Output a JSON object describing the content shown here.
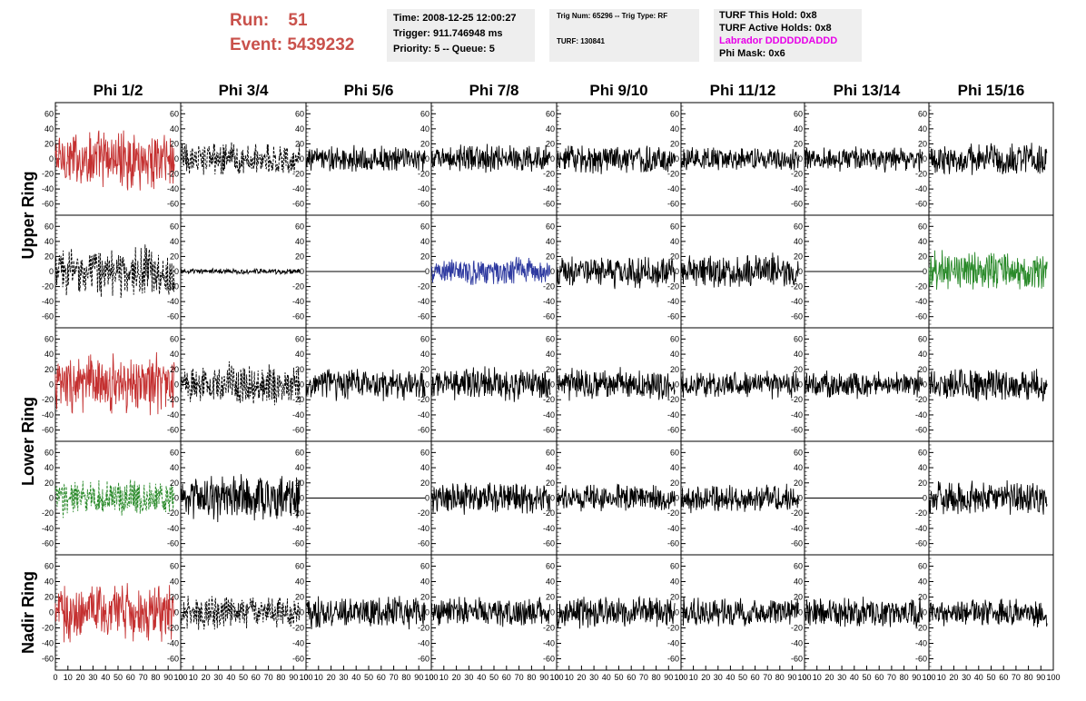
{
  "header": {
    "run_label": "Run:",
    "run_value": "51",
    "event_label": "Event:",
    "event_value": "5439232",
    "time": "Time: 2008-12-25 12:00:27",
    "trigger": "Trigger: 911.746948 ms",
    "priority": "Priority: 5 -- Queue: 5",
    "trig_num": "Trig Num: 65296 -- Trig Type: RF",
    "turf": "TURF: 130841",
    "turf_this_hold": "TURF This Hold: 0x8",
    "turf_active_holds": "TURF Active Holds: 0x8",
    "labrador": "Labrador DDDDDDADDD",
    "phi_mask": "Phi Mask: 0x6"
  },
  "chart_data": {
    "type": "line",
    "columns": [
      "Phi 1/2",
      "Phi 3/4",
      "Phi 5/6",
      "Phi 7/8",
      "Phi 9/10",
      "Phi 11/12",
      "Phi 13/14",
      "Phi 15/16"
    ],
    "ring_labels": [
      "Upper Ring",
      "Lower Ring",
      "Nadir Ring"
    ],
    "y_ticks": [
      -60,
      -40,
      -20,
      0,
      20,
      40,
      60
    ],
    "x_ticks": [
      0,
      10,
      20,
      30,
      40,
      50,
      60,
      70,
      80,
      90,
      100
    ],
    "xlim": [
      0,
      100
    ],
    "ylim": [
      -70,
      70
    ],
    "x_range_waveform": [
      0,
      95
    ],
    "colors": {
      "red": "#c43030",
      "blue": "#2e3aa0",
      "green": "#2a8a2a",
      "black": "#000000"
    },
    "rows": [
      [
        {
          "color": "red",
          "amp": 32,
          "dashed": false
        },
        {
          "color": "black",
          "amp": 18,
          "dashed": true
        },
        {
          "color": "black",
          "amp": 14,
          "dashed": false
        },
        {
          "color": "black",
          "amp": 15,
          "dashed": false
        },
        {
          "color": "black",
          "amp": 16,
          "dashed": false
        },
        {
          "color": "black",
          "amp": 13,
          "dashed": false
        },
        {
          "color": "black",
          "amp": 13,
          "dashed": false
        },
        {
          "color": "black",
          "amp": 17,
          "dashed": false
        }
      ],
      [
        {
          "color": "black",
          "amp": 26,
          "dashed": true
        },
        {
          "color": "black",
          "amp": 3,
          "dashed": false
        },
        {
          "color": "black",
          "amp": 0,
          "dashed": false
        },
        {
          "color": "blue",
          "amp": 16,
          "dashed": false
        },
        {
          "color": "black",
          "amp": 17,
          "dashed": false
        },
        {
          "color": "black",
          "amp": 18,
          "dashed": false
        },
        {
          "color": "black",
          "amp": 0,
          "dashed": false
        },
        {
          "color": "green",
          "amp": 22,
          "dashed": false
        }
      ],
      [
        {
          "color": "red",
          "amp": 32,
          "dashed": false
        },
        {
          "color": "black",
          "amp": 22,
          "dashed": true
        },
        {
          "color": "black",
          "amp": 17,
          "dashed": false
        },
        {
          "color": "black",
          "amp": 18,
          "dashed": false
        },
        {
          "color": "black",
          "amp": 17,
          "dashed": false
        },
        {
          "color": "black",
          "amp": 14,
          "dashed": false
        },
        {
          "color": "black",
          "amp": 14,
          "dashed": false
        },
        {
          "color": "black",
          "amp": 17,
          "dashed": false
        }
      ],
      [
        {
          "color": "green",
          "amp": 20,
          "dashed": true
        },
        {
          "color": "black",
          "amp": 25,
          "dashed": false
        },
        {
          "color": "black",
          "amp": 0,
          "dashed": false
        },
        {
          "color": "black",
          "amp": 17,
          "dashed": false
        },
        {
          "color": "black",
          "amp": 14,
          "dashed": false
        },
        {
          "color": "black",
          "amp": 15,
          "dashed": false
        },
        {
          "color": "black",
          "amp": 0,
          "dashed": false
        },
        {
          "color": "black",
          "amp": 18,
          "dashed": false
        }
      ],
      [
        {
          "color": "red",
          "amp": 30,
          "dashed": false
        },
        {
          "color": "black",
          "amp": 17,
          "dashed": true
        },
        {
          "color": "black",
          "amp": 16,
          "dashed": false
        },
        {
          "color": "black",
          "amp": 15,
          "dashed": false
        },
        {
          "color": "black",
          "amp": 16,
          "dashed": false
        },
        {
          "color": "black",
          "amp": 16,
          "dashed": false
        },
        {
          "color": "black",
          "amp": 16,
          "dashed": false
        },
        {
          "color": "black",
          "amp": 15,
          "dashed": false
        }
      ]
    ]
  }
}
